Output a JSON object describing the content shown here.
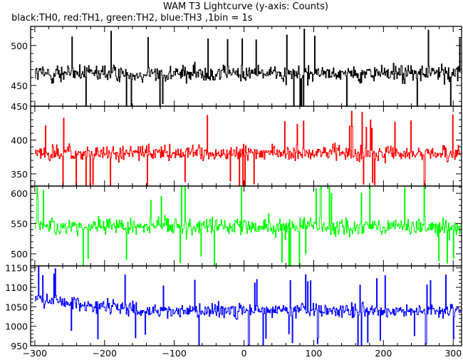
{
  "title": "WAM T3 Lightcurve (y-axis: Counts)",
  "subtitle": "black:TH0, red:TH1, green:TH2, blue:TH3 ,1bin = 1s",
  "chart_data": [
    {
      "type": "line",
      "name": "TH0",
      "color": "#000000",
      "xlim": [
        -306,
        312
      ],
      "ylim": [
        424,
        524
      ],
      "yticks": [
        450,
        500
      ],
      "baseline": 465,
      "noise": 18,
      "spread": 48,
      "series": [
        {
          "name": "TH0",
          "x_start": -300,
          "x_end": 310,
          "x_step": 1
        }
      ]
    },
    {
      "type": "line",
      "name": "TH1",
      "color": "#ff0000",
      "xlim": [
        -306,
        312
      ],
      "ylim": [
        332,
        450
      ],
      "yticks": [
        350,
        400,
        450
      ],
      "baseline": 380,
      "noise": 19,
      "spread": 50,
      "series": [
        {
          "name": "TH1",
          "x_start": -300,
          "x_end": 310,
          "x_step": 1
        }
      ]
    },
    {
      "type": "line",
      "name": "TH2",
      "color": "#00ff00",
      "xlim": [
        -306,
        312
      ],
      "ylim": [
        480,
        612
      ],
      "yticks": [
        500,
        550,
        600
      ],
      "baseline": 545,
      "noise": 24,
      "spread": 62,
      "series": [
        {
          "name": "TH2",
          "x_start": -300,
          "x_end": 310,
          "x_step": 1
        }
      ]
    },
    {
      "type": "line",
      "name": "TH3",
      "color": "#0000ff",
      "xlim": [
        -306,
        312
      ],
      "ylim": [
        950,
        1155
      ],
      "yticks": [
        950,
        1000,
        1050,
        1100,
        1150
      ],
      "baseline": 1040,
      "noise": 30,
      "spread": 80,
      "early_excess": 30,
      "series": [
        {
          "name": "TH3",
          "x_start": -300,
          "x_end": 310,
          "x_step": 1
        }
      ]
    }
  ],
  "x_axis": {
    "ticks": [
      -300,
      -200,
      -100,
      0,
      100,
      200,
      300
    ],
    "minor_step": 20
  }
}
